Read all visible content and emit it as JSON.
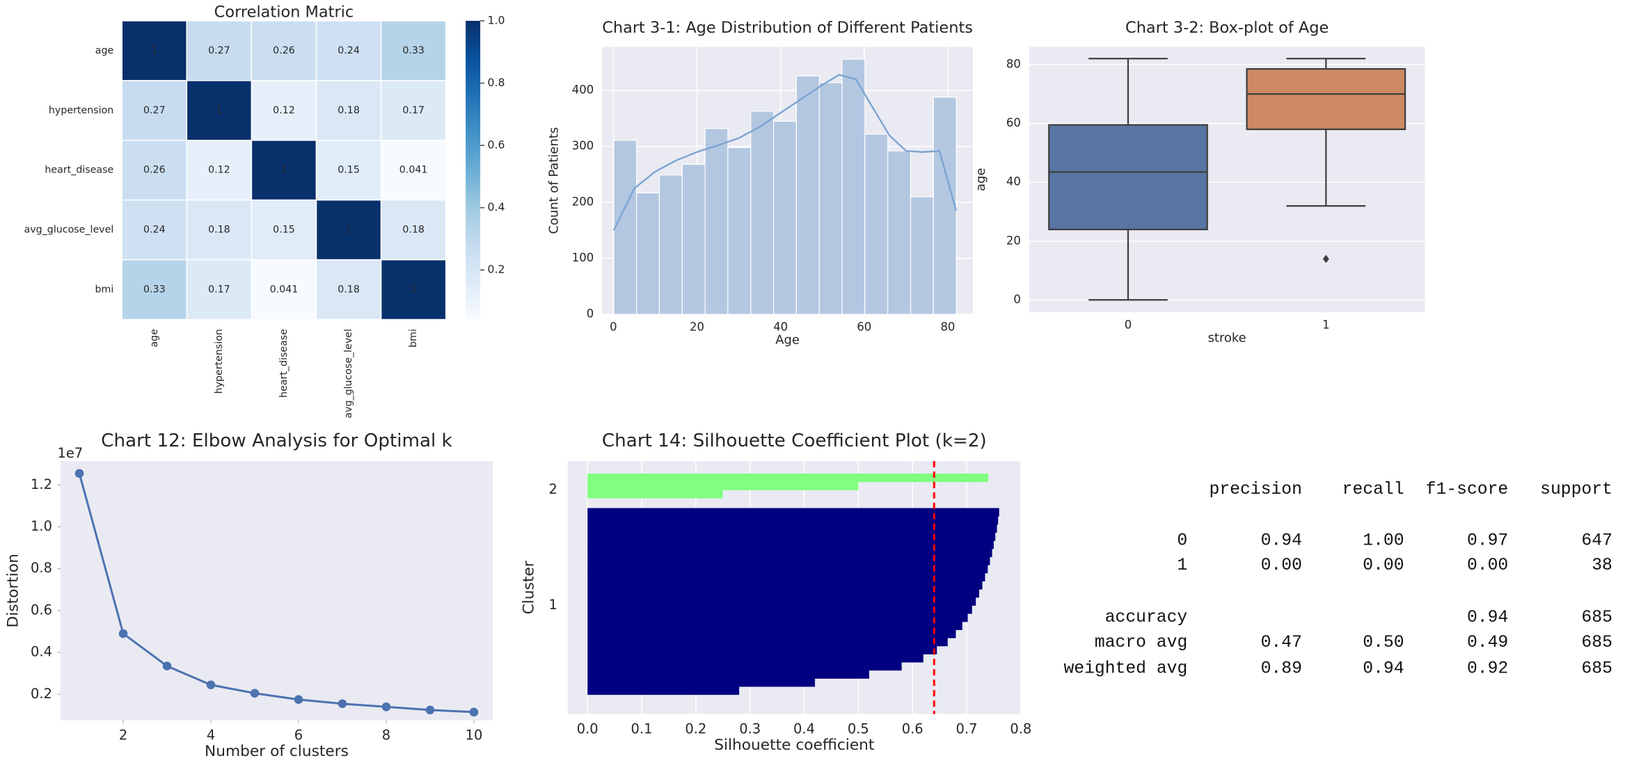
{
  "chart_data": [
    {
      "type": "heatmap",
      "title": "Correlation Matric",
      "labels": [
        "age",
        "hypertension",
        "heart_disease",
        "avg_glucose_level",
        "bmi"
      ],
      "matrix": [
        [
          1,
          0.27,
          0.26,
          0.24,
          0.33
        ],
        [
          0.27,
          1,
          0.12,
          0.18,
          0.17
        ],
        [
          0.26,
          0.12,
          1,
          0.15,
          0.041
        ],
        [
          0.24,
          0.18,
          0.15,
          1,
          0.18
        ],
        [
          0.33,
          0.17,
          0.041,
          0.18,
          1
        ]
      ],
      "cmap": "Blues",
      "clim": [
        0.041,
        1
      ],
      "cbar_ticks": [
        0.2,
        0.4,
        0.6,
        0.8,
        {
          "value": 1,
          "label": "1.0"
        }
      ]
    },
    {
      "type": "histogram",
      "title": "Chart 3-1: Age Distribution of Different Patients",
      "xlabel": "Age",
      "ylabel": "Count of Patients",
      "bins": [
        0.08,
        5.54,
        11.0,
        16.47,
        21.93,
        27.39,
        32.86,
        38.32,
        43.78,
        49.24,
        54.71,
        60.17,
        65.63,
        71.1,
        76.56,
        82.02
      ],
      "values": [
        311,
        217,
        249,
        268,
        332,
        298,
        363,
        345,
        426,
        414,
        456,
        322,
        292,
        210,
        388
      ],
      "color": "#b3c7e1",
      "kde": {
        "x": [
          0.08,
          5,
          10,
          15,
          20,
          25,
          30,
          35,
          40,
          45,
          50,
          54,
          58,
          62,
          66,
          70,
          74,
          78,
          82
        ],
        "values": [
          150,
          225,
          255,
          275,
          290,
          302,
          315,
          335,
          360,
          385,
          410,
          428,
          420,
          370,
          320,
          292,
          290,
          292,
          185
        ],
        "color": "#7ba4d2"
      },
      "xlim": [
        -2.7,
        86
      ],
      "ylim": [
        0,
        478
      ],
      "xticks": [
        0,
        20,
        40,
        60,
        80
      ],
      "yticks": [
        0,
        100,
        200,
        300,
        400
      ],
      "grid": "both"
    },
    {
      "type": "box",
      "title": "Chart 3-2: Box-plot of Age",
      "xlabel": "stroke",
      "ylabel": "age",
      "categories": [
        "0",
        "1"
      ],
      "boxes": [
        {
          "whislo": 0.08,
          "q1": 24,
          "med": 43.5,
          "q3": 59.5,
          "whishi": 82,
          "fliers": [],
          "color": "#5875a4"
        },
        {
          "whislo": 32,
          "q1": 58,
          "med": 70,
          "q3": 78.5,
          "whishi": 82,
          "fliers": [
            14
          ],
          "color": "#cc8963"
        }
      ],
      "ylim": [
        -4.1,
        86
      ],
      "yticks": [
        0,
        20,
        40,
        60,
        80
      ],
      "grid": "y"
    },
    {
      "type": "line",
      "title": "Chart 12: Elbow Analysis for Optimal k",
      "xlabel": "Number of clusters",
      "ylabel": "Distortion",
      "offset_text": "1e7",
      "x": [
        1,
        2,
        3,
        4,
        5,
        6,
        7,
        8,
        9,
        10
      ],
      "values": [
        1.255,
        0.49,
        0.335,
        0.245,
        0.205,
        0.175,
        0.155,
        0.14,
        0.125,
        0.115
      ],
      "color": "#4c72b0",
      "marker": "o",
      "xlim": [
        0.57,
        10.43
      ],
      "ylim": [
        0.076,
        1.314
      ],
      "xticks": [
        2,
        4,
        6,
        8,
        10
      ],
      "yticks": [
        0.2,
        0.4,
        0.6,
        0.8,
        {
          "value": 1,
          "label": "1.0"
        },
        1.2
      ],
      "grid": false
    },
    {
      "type": "silhouette",
      "title": "Chart 14: Silhouette Coefficient Plot (k=2)",
      "xlabel": "Silhouette coefficient",
      "ylabel": "Cluster",
      "series": [
        {
          "name": "1",
          "color": "#000080",
          "values": [
            0.0,
            0.28,
            0.42,
            0.52,
            0.58,
            0.62,
            0.645,
            0.665,
            0.68,
            0.692,
            0.702,
            0.71,
            0.717,
            0.723,
            0.729,
            0.734,
            0.739,
            0.743,
            0.747,
            0.75,
            0.753,
            0.756,
            0.758,
            0.76
          ]
        },
        {
          "name": "2",
          "color": "#80ff80",
          "values": [
            0.0,
            0.25,
            0.5,
            0.74
          ]
        }
      ],
      "avg_line": {
        "value": 0.64,
        "color": "#ff0000"
      },
      "xlim": [
        -0.0365,
        0.8
      ],
      "xticks": [
        {
          "value": 0,
          "label": "0.0"
        },
        0.1,
        0.2,
        0.3,
        0.4,
        0.5,
        0.6,
        0.7,
        0.8
      ],
      "grid": "x"
    }
  ],
  "report": {
    "columns": [
      "precision",
      "recall",
      "f1-score",
      "support"
    ],
    "rows": [
      {
        "label": "0",
        "cells": [
          "0.94",
          "1.00",
          "0.97",
          "647"
        ]
      },
      {
        "label": "1",
        "cells": [
          "0.00",
          "0.00",
          "0.00",
          "38"
        ]
      },
      {
        "label": "accuracy",
        "cells": [
          null,
          null,
          "0.94",
          "685"
        ]
      },
      {
        "label": "macro avg",
        "cells": [
          "0.47",
          "0.50",
          "0.49",
          "685"
        ]
      },
      {
        "label": "weighted avg",
        "cells": [
          "0.89",
          "0.94",
          "0.92",
          "685"
        ]
      }
    ]
  }
}
